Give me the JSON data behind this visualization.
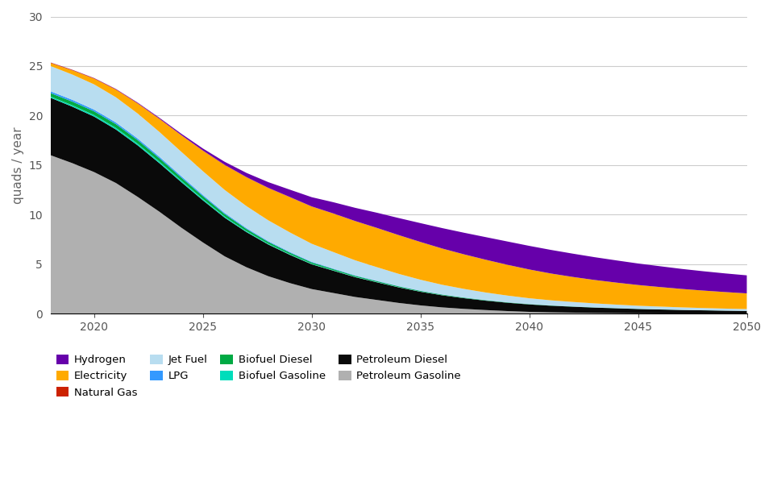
{
  "years": [
    2018,
    2019,
    2020,
    2021,
    2022,
    2023,
    2024,
    2025,
    2026,
    2027,
    2028,
    2029,
    2030,
    2031,
    2032,
    2033,
    2034,
    2035,
    2036,
    2037,
    2038,
    2039,
    2040,
    2041,
    2042,
    2043,
    2044,
    2045,
    2046,
    2047,
    2048,
    2049,
    2050
  ],
  "petroleum_gasoline": [
    16.0,
    15.2,
    14.3,
    13.2,
    11.8,
    10.3,
    8.7,
    7.2,
    5.8,
    4.7,
    3.8,
    3.1,
    2.5,
    2.1,
    1.7,
    1.4,
    1.1,
    0.85,
    0.65,
    0.5,
    0.38,
    0.28,
    0.2,
    0.15,
    0.12,
    0.09,
    0.07,
    0.05,
    0.04,
    0.03,
    0.025,
    0.02,
    0.015
  ],
  "petroleum_diesel": [
    5.8,
    5.7,
    5.6,
    5.4,
    5.2,
    4.9,
    4.6,
    4.25,
    3.9,
    3.55,
    3.2,
    2.85,
    2.5,
    2.25,
    2.0,
    1.78,
    1.57,
    1.38,
    1.22,
    1.08,
    0.95,
    0.84,
    0.75,
    0.67,
    0.6,
    0.54,
    0.49,
    0.44,
    0.4,
    0.36,
    0.33,
    0.3,
    0.28
  ],
  "biofuel_gasoline": [
    0.12,
    0.14,
    0.15,
    0.16,
    0.16,
    0.15,
    0.14,
    0.13,
    0.11,
    0.09,
    0.07,
    0.06,
    0.05,
    0.04,
    0.035,
    0.03,
    0.025,
    0.02,
    0.015,
    0.012,
    0.01,
    0.008,
    0.006,
    0.005,
    0.004,
    0.003,
    0.003,
    0.002,
    0.002,
    0.002,
    0.001,
    0.001,
    0.001
  ],
  "biofuel_diesel": [
    0.35,
    0.37,
    0.38,
    0.38,
    0.37,
    0.35,
    0.32,
    0.29,
    0.26,
    0.22,
    0.19,
    0.16,
    0.14,
    0.12,
    0.1,
    0.088,
    0.076,
    0.065,
    0.055,
    0.046,
    0.038,
    0.032,
    0.027,
    0.022,
    0.019,
    0.016,
    0.013,
    0.011,
    0.009,
    0.008,
    0.007,
    0.006,
    0.005
  ],
  "lpg": [
    0.18,
    0.18,
    0.17,
    0.17,
    0.16,
    0.15,
    0.14,
    0.12,
    0.11,
    0.09,
    0.08,
    0.07,
    0.06,
    0.05,
    0.044,
    0.038,
    0.032,
    0.027,
    0.022,
    0.018,
    0.015,
    0.012,
    0.01,
    0.008,
    0.007,
    0.006,
    0.005,
    0.004,
    0.004,
    0.003,
    0.003,
    0.002,
    0.002
  ],
  "jet_fuel": [
    2.55,
    2.55,
    2.55,
    2.54,
    2.52,
    2.5,
    2.46,
    2.4,
    2.32,
    2.22,
    2.1,
    1.97,
    1.82,
    1.67,
    1.52,
    1.37,
    1.23,
    1.1,
    0.97,
    0.86,
    0.76,
    0.67,
    0.58,
    0.51,
    0.45,
    0.4,
    0.35,
    0.31,
    0.28,
    0.25,
    0.22,
    0.2,
    0.18
  ],
  "electricity": [
    0.3,
    0.42,
    0.57,
    0.76,
    1.0,
    1.3,
    1.65,
    2.05,
    2.5,
    2.9,
    3.25,
    3.55,
    3.75,
    3.88,
    3.95,
    3.95,
    3.9,
    3.8,
    3.65,
    3.48,
    3.3,
    3.1,
    2.9,
    2.7,
    2.52,
    2.36,
    2.22,
    2.09,
    1.97,
    1.86,
    1.76,
    1.67,
    1.58
  ],
  "natural_gas": [
    0.05,
    0.05,
    0.05,
    0.05,
    0.05,
    0.05,
    0.04,
    0.04,
    0.04,
    0.03,
    0.03,
    0.025,
    0.02,
    0.018,
    0.016,
    0.014,
    0.012,
    0.01,
    0.009,
    0.008,
    0.007,
    0.006,
    0.005,
    0.004,
    0.004,
    0.003,
    0.003,
    0.003,
    0.002,
    0.002,
    0.002,
    0.001,
    0.001
  ],
  "hydrogen": [
    0.01,
    0.015,
    0.02,
    0.03,
    0.05,
    0.08,
    0.13,
    0.2,
    0.3,
    0.42,
    0.57,
    0.74,
    0.93,
    1.13,
    1.33,
    1.53,
    1.72,
    1.9,
    2.06,
    2.18,
    2.28,
    2.35,
    2.38,
    2.38,
    2.35,
    2.3,
    2.24,
    2.17,
    2.1,
    2.02,
    1.95,
    1.88,
    1.82
  ],
  "colors": {
    "petroleum_gasoline": "#b0b0b0",
    "petroleum_diesel": "#0a0a0a",
    "biofuel_gasoline": "#00ddbb",
    "biofuel_diesel": "#00aa44",
    "lpg": "#3399ff",
    "jet_fuel": "#b8ddf0",
    "electricity": "#ffaa00",
    "natural_gas": "#cc2200",
    "hydrogen": "#6600aa"
  },
  "legend": [
    {
      "label": "Hydrogen",
      "color": "#6600aa"
    },
    {
      "label": "Electricity",
      "color": "#ffaa00"
    },
    {
      "label": "Natural Gas",
      "color": "#cc2200"
    },
    {
      "label": "Jet Fuel",
      "color": "#b8ddf0"
    },
    {
      "label": "LPG",
      "color": "#3399ff"
    },
    {
      "label": "Biofuel Diesel",
      "color": "#00aa44"
    },
    {
      "label": "Biofuel Gasoline",
      "color": "#00ddbb"
    },
    {
      "label": "Petroleum Diesel",
      "color": "#0a0a0a"
    },
    {
      "label": "Petroleum Gasoline",
      "color": "#b0b0b0"
    }
  ],
  "ylabel": "quads / year",
  "ylim": [
    0,
    30
  ],
  "yticks": [
    0,
    5,
    10,
    15,
    20,
    25,
    30
  ],
  "xlim": [
    2018,
    2050
  ],
  "xticks": [
    2020,
    2025,
    2030,
    2035,
    2040,
    2045,
    2050
  ],
  "background_color": "#ffffff",
  "grid_color": "#cccccc"
}
